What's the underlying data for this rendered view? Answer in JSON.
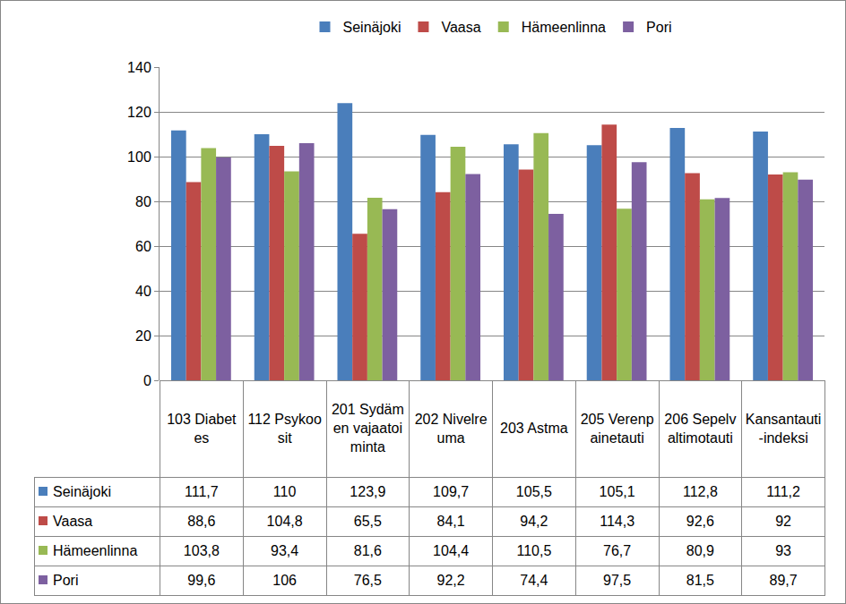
{
  "chart_data": {
    "type": "bar",
    "categories": [
      "103 Diabetes",
      "112 Psykoosit",
      "201 Sydämen vajaatoiminta",
      "202 Nivelreuma",
      "203 Astma",
      "205 Verenpainetauti",
      "206 Sepelvaltimotauti",
      "Kansantauti-indeksi"
    ],
    "series": [
      {
        "name": "Seinäjoki",
        "color": "#4a7ebb",
        "values": [
          111.7,
          110,
          123.9,
          109.7,
          105.5,
          105.1,
          112.8,
          111.2
        ],
        "value_labels": [
          "111,7",
          "110",
          "123,9",
          "109,7",
          "105,5",
          "105,1",
          "112,8",
          "111,2"
        ]
      },
      {
        "name": "Vaasa",
        "color": "#be4b48",
        "values": [
          88.6,
          104.8,
          65.5,
          84.1,
          94.2,
          114.3,
          92.6,
          92
        ],
        "value_labels": [
          "88,6",
          "104,8",
          "65,5",
          "84,1",
          "94,2",
          "114,3",
          "92,6",
          "92"
        ]
      },
      {
        "name": "Hämeenlinna",
        "color": "#98b954",
        "values": [
          103.8,
          93.4,
          81.6,
          104.4,
          110.5,
          76.7,
          80.9,
          93
        ],
        "value_labels": [
          "103,8",
          "93,4",
          "81,6",
          "104,4",
          "110,5",
          "76,7",
          "80,9",
          "93"
        ]
      },
      {
        "name": "Pori",
        "color": "#7d60a0",
        "values": [
          99.6,
          106,
          76.5,
          92.2,
          74.4,
          97.5,
          81.5,
          89.7
        ],
        "value_labels": [
          "99,6",
          "106",
          "76,5",
          "92,2",
          "74,4",
          "97,5",
          "81,5",
          "89,7"
        ]
      }
    ],
    "ylim": [
      0,
      140
    ],
    "yticks": [
      0,
      20,
      40,
      60,
      80,
      100,
      120,
      140
    ],
    "grid": true,
    "legend": "top"
  }
}
